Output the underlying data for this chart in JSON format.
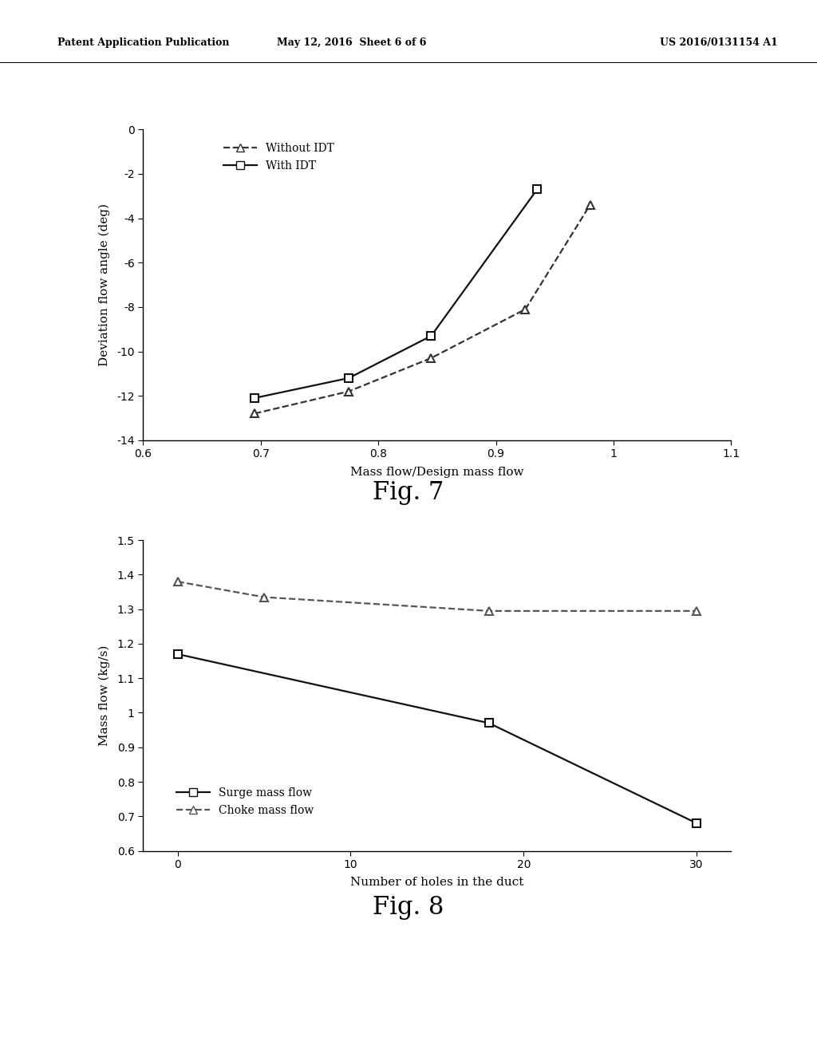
{
  "header_left": "Patent Application Publication",
  "header_mid": "May 12, 2016  Sheet 6 of 6",
  "header_right": "US 2016/0131154 A1",
  "fig7_title": "Fig. 7",
  "fig7_xlabel": "Mass flow/Design mass flow",
  "fig7_ylabel": "Deviation flow angle (deg)",
  "fig7_xlim": [
    0.6,
    1.1
  ],
  "fig7_ylim": [
    -14,
    0
  ],
  "fig7_xticks": [
    0.6,
    0.7,
    0.8,
    0.9,
    1.0,
    1.1
  ],
  "fig7_yticks": [
    0,
    -2,
    -4,
    -6,
    -8,
    -10,
    -12,
    -14
  ],
  "fig7_series": [
    {
      "label": "Without IDT",
      "x": [
        0.695,
        0.775,
        0.845,
        0.925,
        0.98
      ],
      "y": [
        -12.8,
        -11.8,
        -10.3,
        -8.1,
        -3.4
      ],
      "linestyle": "dashed",
      "marker": "^",
      "color": "#333333"
    },
    {
      "label": "With IDT",
      "x": [
        0.695,
        0.775,
        0.845,
        0.935
      ],
      "y": [
        -12.1,
        -11.2,
        -9.3,
        -2.7
      ],
      "linestyle": "solid",
      "marker": "s",
      "color": "#111111"
    }
  ],
  "fig8_title": "Fig. 8",
  "fig8_xlabel": "Number of holes in the duct",
  "fig8_ylabel": "Mass flow (kg/s)",
  "fig8_xlim": [
    -2,
    32
  ],
  "fig8_ylim": [
    0.6,
    1.5
  ],
  "fig8_xticks": [
    0,
    10,
    20,
    30
  ],
  "fig8_yticks": [
    0.6,
    0.7,
    0.8,
    0.9,
    1.0,
    1.1,
    1.2,
    1.3,
    1.4,
    1.5
  ],
  "fig8_series": [
    {
      "label": "Surge mass flow",
      "x": [
        0,
        18,
        30
      ],
      "y": [
        1.17,
        0.97,
        0.68
      ],
      "linestyle": "solid",
      "marker": "s",
      "color": "#111111"
    },
    {
      "label": "Choke mass flow",
      "x": [
        0,
        5,
        18,
        30
      ],
      "y": [
        1.38,
        1.335,
        1.295,
        1.295
      ],
      "linestyle": "dashed",
      "marker": "^",
      "color": "#555555"
    }
  ],
  "background_color": "#ffffff",
  "text_color": "#000000",
  "header_fontsize": 9,
  "axis_label_fontsize": 11,
  "tick_fontsize": 10,
  "legend_fontsize": 10,
  "fig_label_fontsize": 22,
  "marker_size": 7,
  "line_width": 1.6
}
